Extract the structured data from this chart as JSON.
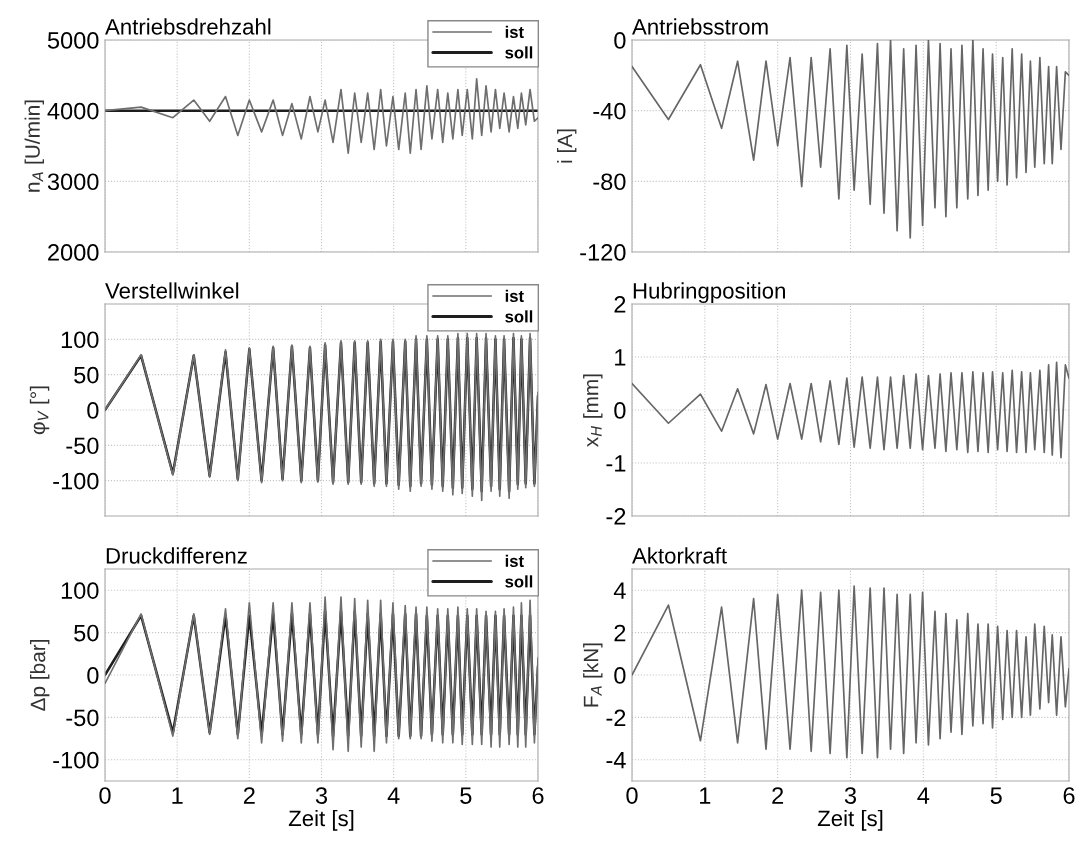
{
  "chart_data": [
    {
      "type": "line",
      "title": "Antriebsdrehzahl",
      "ylabel": "n$_{A}$ [U/min]",
      "xlim": [
        0,
        6
      ],
      "xticks": [
        0,
        1,
        2,
        3,
        4,
        5,
        6
      ],
      "ylim": [
        2000,
        5000
      ],
      "yticks": [
        2000,
        3000,
        4000,
        5000
      ],
      "grid": true,
      "legend": "top right",
      "tick_labels": "y",
      "x": [
        0,
        0.5,
        0.94,
        1.23,
        1.45,
        1.67,
        1.84,
        2.0,
        2.17,
        2.33,
        2.46,
        2.59,
        2.72,
        2.84,
        2.95,
        3.05,
        3.16,
        3.27,
        3.37,
        3.46,
        3.55,
        3.64,
        3.73,
        3.82,
        3.9,
        3.99,
        4.07,
        4.16,
        4.23,
        4.31,
        4.38,
        4.46,
        4.53,
        4.61,
        4.68,
        4.75,
        4.82,
        4.89,
        4.95,
        5.02,
        5.09,
        5.15,
        5.22,
        5.28,
        5.35,
        5.41,
        5.47,
        5.53,
        5.6,
        5.66,
        5.72,
        5.77,
        5.83,
        5.89,
        5.95,
        6.0
      ],
      "series": [
        {
          "name": "ist",
          "color": "#6e6e6e",
          "values": [
            4000,
            4050,
            3900,
            4150,
            3850,
            4200,
            3650,
            4150,
            3700,
            4150,
            3650,
            4100,
            3600,
            4200,
            3700,
            4150,
            3550,
            4300,
            3400,
            4250,
            3550,
            4250,
            3450,
            4300,
            3500,
            4200,
            3450,
            4250,
            3400,
            4300,
            3450,
            4350,
            3600,
            4300,
            3550,
            4250,
            3600,
            4300,
            3650,
            4300,
            3600,
            4450,
            3650,
            4350,
            3700,
            4300,
            3750,
            4250,
            3700,
            4200,
            3750,
            4250,
            3800,
            4300,
            3850,
            3900
          ]
        },
        {
          "name": "soll",
          "color": "#1e1e1e",
          "x": [
            0,
            6
          ],
          "values": [
            4000,
            4000
          ]
        }
      ]
    },
    {
      "type": "line",
      "title": "Antriebsstrom",
      "ylabel": "i [A]",
      "xlim": [
        0,
        6
      ],
      "xticks": [
        0,
        1,
        2,
        3,
        4,
        5,
        6
      ],
      "ylim": [
        -120,
        0
      ],
      "yticks": [
        -120,
        -80,
        -40,
        0
      ],
      "grid": true,
      "tick_labels": "y",
      "x": [
        0,
        0.5,
        0.94,
        1.23,
        1.45,
        1.67,
        1.84,
        2.0,
        2.17,
        2.33,
        2.46,
        2.59,
        2.72,
        2.84,
        2.95,
        3.05,
        3.16,
        3.27,
        3.37,
        3.46,
        3.55,
        3.64,
        3.73,
        3.82,
        3.9,
        3.99,
        4.07,
        4.16,
        4.23,
        4.31,
        4.38,
        4.46,
        4.53,
        4.61,
        4.68,
        4.75,
        4.82,
        4.89,
        4.95,
        5.02,
        5.09,
        5.15,
        5.22,
        5.28,
        5.35,
        5.41,
        5.47,
        5.53,
        5.6,
        5.66,
        5.72,
        5.77,
        5.83,
        5.89,
        5.95,
        6.0
      ],
      "series": [
        {
          "color": "#666666",
          "values": [
            -15,
            -45,
            -14,
            -50,
            -12,
            -68,
            -12,
            -60,
            -10,
            -83,
            -10,
            -72,
            -5,
            -90,
            -3,
            -85,
            -8,
            -93,
            -2,
            -98,
            0,
            -108,
            -5,
            -112,
            -3,
            -105,
            0,
            -95,
            -2,
            -100,
            -5,
            -95,
            -3,
            -90,
            0,
            -88,
            -5,
            -85,
            -8,
            -80,
            -10,
            -82,
            -5,
            -78,
            -8,
            -75,
            -12,
            -72,
            -10,
            -70,
            -15,
            -70,
            -15,
            -62,
            -18,
            -20
          ]
        }
      ]
    },
    {
      "type": "line",
      "title": "Verstellwinkel",
      "ylabel": "φ$_{V}$ [°]",
      "xlim": [
        0,
        6
      ],
      "xticks": [
        0,
        1,
        2,
        3,
        4,
        5,
        6
      ],
      "ylim": [
        -150,
        150
      ],
      "yticks": [
        -100,
        -50,
        0,
        50,
        100
      ],
      "grid": true,
      "legend": "top right",
      "tick_labels": "y",
      "x": [
        0,
        0.5,
        0.94,
        1.23,
        1.45,
        1.67,
        1.84,
        2.0,
        2.17,
        2.33,
        2.46,
        2.59,
        2.72,
        2.84,
        2.95,
        3.05,
        3.16,
        3.27,
        3.37,
        3.46,
        3.55,
        3.64,
        3.73,
        3.82,
        3.9,
        3.99,
        4.07,
        4.16,
        4.23,
        4.31,
        4.38,
        4.46,
        4.53,
        4.61,
        4.68,
        4.75,
        4.82,
        4.89,
        4.95,
        5.02,
        5.09,
        5.15,
        5.22,
        5.28,
        5.35,
        5.41,
        5.47,
        5.53,
        5.6,
        5.66,
        5.72,
        5.77,
        5.83,
        5.89,
        5.95,
        6.0
      ],
      "series": [
        {
          "name": "ist",
          "color": "#6e6e6e",
          "values": [
            0,
            78,
            -92,
            78,
            -95,
            85,
            -100,
            88,
            -103,
            90,
            -100,
            92,
            -103,
            90,
            -102,
            95,
            -105,
            98,
            -105,
            98,
            -105,
            98,
            -108,
            100,
            -108,
            100,
            -112,
            100,
            -115,
            105,
            -108,
            105,
            -112,
            105,
            -115,
            105,
            -120,
            108,
            -118,
            108,
            -122,
            108,
            -128,
            108,
            -115,
            105,
            -122,
            105,
            -125,
            108,
            -112,
            105,
            -110,
            108,
            -108,
            25
          ]
        },
        {
          "name": "soll",
          "color": "#1e1e1e",
          "values": [
            0,
            77,
            -90,
            77,
            -93,
            82,
            -98,
            86,
            -100,
            88,
            -98,
            90,
            -100,
            88,
            -100,
            92,
            -102,
            95,
            -102,
            95,
            -102,
            95,
            -104,
            97,
            -104,
            97,
            -106,
            97,
            -108,
            100,
            -104,
            100,
            -106,
            100,
            -108,
            100,
            -110,
            102,
            -110,
            102,
            -112,
            102,
            -115,
            102,
            -108,
            100,
            -112,
            100,
            -115,
            102,
            -105,
            100,
            -104,
            102,
            -104,
            20
          ]
        }
      ]
    },
    {
      "type": "line",
      "title": "Hubringposition",
      "ylabel": "x$_{H}$ [mm]",
      "xlim": [
        0,
        6
      ],
      "xticks": [
        0,
        1,
        2,
        3,
        4,
        5,
        6
      ],
      "ylim": [
        -2,
        2
      ],
      "yticks": [
        -2,
        -1,
        0,
        1,
        2
      ],
      "grid": true,
      "tick_labels": "y",
      "x": [
        0,
        0.5,
        0.94,
        1.23,
        1.45,
        1.67,
        1.84,
        2.0,
        2.17,
        2.33,
        2.46,
        2.59,
        2.72,
        2.84,
        2.95,
        3.05,
        3.16,
        3.27,
        3.37,
        3.46,
        3.55,
        3.64,
        3.73,
        3.82,
        3.9,
        3.99,
        4.07,
        4.16,
        4.23,
        4.31,
        4.38,
        4.46,
        4.53,
        4.61,
        4.68,
        4.75,
        4.82,
        4.89,
        4.95,
        5.02,
        5.09,
        5.15,
        5.22,
        5.28,
        5.35,
        5.41,
        5.47,
        5.53,
        5.6,
        5.66,
        5.72,
        5.77,
        5.83,
        5.89,
        5.95,
        6.0
      ],
      "series": [
        {
          "color": "#666666",
          "values": [
            0.5,
            -0.25,
            0.3,
            -0.4,
            0.4,
            -0.45,
            0.48,
            -0.55,
            0.5,
            -0.55,
            0.5,
            -0.6,
            0.55,
            -0.65,
            0.6,
            -0.7,
            0.62,
            -0.72,
            0.62,
            -0.75,
            0.62,
            -0.72,
            0.65,
            -0.72,
            0.68,
            -0.75,
            0.65,
            -0.72,
            0.68,
            -0.78,
            0.7,
            -0.75,
            0.7,
            -0.8,
            0.72,
            -0.78,
            0.7,
            -0.8,
            0.72,
            -0.75,
            0.7,
            -0.78,
            0.75,
            -0.8,
            0.72,
            -0.8,
            0.7,
            -0.75,
            0.75,
            -0.8,
            0.85,
            -0.85,
            0.9,
            -0.9,
            0.85,
            0.6
          ]
        }
      ]
    },
    {
      "type": "line",
      "title": "Druckdifferenz",
      "ylabel": "Δp [bar]",
      "xlabel": "Zeit [s]",
      "xlim": [
        0,
        6
      ],
      "xticks": [
        0,
        1,
        2,
        3,
        4,
        5,
        6
      ],
      "ylim": [
        -125,
        125
      ],
      "yticks": [
        -100,
        -50,
        0,
        50,
        100
      ],
      "grid": true,
      "legend": "top right",
      "x": [
        0,
        0.5,
        0.94,
        1.23,
        1.45,
        1.67,
        1.84,
        2.0,
        2.17,
        2.33,
        2.46,
        2.59,
        2.72,
        2.84,
        2.95,
        3.05,
        3.16,
        3.27,
        3.37,
        3.46,
        3.55,
        3.64,
        3.73,
        3.82,
        3.9,
        3.99,
        4.07,
        4.16,
        4.23,
        4.31,
        4.38,
        4.46,
        4.53,
        4.61,
        4.68,
        4.75,
        4.82,
        4.89,
        4.95,
        5.02,
        5.09,
        5.15,
        5.22,
        5.28,
        5.35,
        5.41,
        5.47,
        5.53,
        5.6,
        5.66,
        5.72,
        5.77,
        5.83,
        5.89,
        5.95,
        6.0
      ],
      "series": [
        {
          "name": "ist",
          "color": "#6e6e6e",
          "values": [
            -10,
            72,
            -72,
            72,
            -70,
            78,
            -75,
            85,
            -80,
            85,
            -78,
            85,
            -80,
            85,
            -80,
            92,
            -88,
            92,
            -90,
            90,
            -85,
            88,
            -90,
            88,
            -80,
            85,
            -75,
            82,
            -75,
            80,
            -75,
            80,
            -78,
            78,
            -80,
            78,
            -80,
            80,
            -82,
            78,
            -82,
            78,
            -82,
            75,
            -85,
            75,
            -85,
            78,
            -82,
            80,
            -85,
            85,
            -85,
            88,
            -80,
            20
          ]
        },
        {
          "name": "soll",
          "color": "#1e1e1e",
          "values": [
            0,
            70,
            -68,
            70,
            -68,
            70,
            -70,
            70,
            -70,
            72,
            -70,
            72,
            -70,
            72,
            -70,
            75,
            -72,
            75,
            -72,
            75,
            -72,
            72,
            -72,
            72,
            -72,
            72,
            -72,
            72,
            -72,
            72,
            -72,
            70,
            -70,
            70,
            -70,
            70,
            -70,
            70,
            -70,
            70,
            -70,
            70,
            -70,
            70,
            -70,
            70,
            -70,
            70,
            -70,
            70,
            -70,
            70,
            -70,
            70,
            -70,
            10
          ]
        }
      ]
    },
    {
      "type": "line",
      "title": "Aktorkraft",
      "ylabel": "F$_{A}$ [kN]",
      "xlabel": "Zeit [s]",
      "xlim": [
        0,
        6
      ],
      "xticks": [
        0,
        1,
        2,
        3,
        4,
        5,
        6
      ],
      "ylim": [
        -5,
        5
      ],
      "yticks": [
        -4,
        -2,
        0,
        2,
        4
      ],
      "grid": true,
      "x": [
        0,
        0.5,
        0.94,
        1.23,
        1.45,
        1.67,
        1.84,
        2.0,
        2.17,
        2.33,
        2.46,
        2.59,
        2.72,
        2.84,
        2.95,
        3.05,
        3.16,
        3.27,
        3.37,
        3.46,
        3.55,
        3.64,
        3.73,
        3.82,
        3.9,
        3.99,
        4.07,
        4.16,
        4.23,
        4.31,
        4.38,
        4.46,
        4.53,
        4.61,
        4.68,
        4.75,
        4.82,
        4.89,
        4.95,
        5.02,
        5.09,
        5.15,
        5.22,
        5.28,
        5.35,
        5.41,
        5.47,
        5.53,
        5.6,
        5.66,
        5.72,
        5.77,
        5.83,
        5.89,
        5.95,
        6.0
      ],
      "series": [
        {
          "color": "#666666",
          "values": [
            0,
            3.3,
            -3.1,
            3.2,
            -3.2,
            3.6,
            -3.5,
            3.8,
            -3.5,
            4.0,
            -3.6,
            3.9,
            -3.7,
            4.0,
            -3.9,
            4.2,
            -3.7,
            4.1,
            -3.9,
            4.1,
            -3.5,
            3.8,
            -3.7,
            3.8,
            -3.2,
            3.9,
            -3.3,
            3.0,
            -3.0,
            2.9,
            -2.7,
            2.6,
            -2.8,
            2.9,
            -2.4,
            2.4,
            -2.3,
            2.4,
            -2.5,
            2.3,
            -2.1,
            2.1,
            -2.0,
            2.1,
            -2.0,
            1.8,
            -1.9,
            2.4,
            -1.6,
            2.3,
            -1.3,
            1.9,
            -1.9,
            1.8,
            -1.5,
            0.3
          ]
        }
      ]
    }
  ]
}
